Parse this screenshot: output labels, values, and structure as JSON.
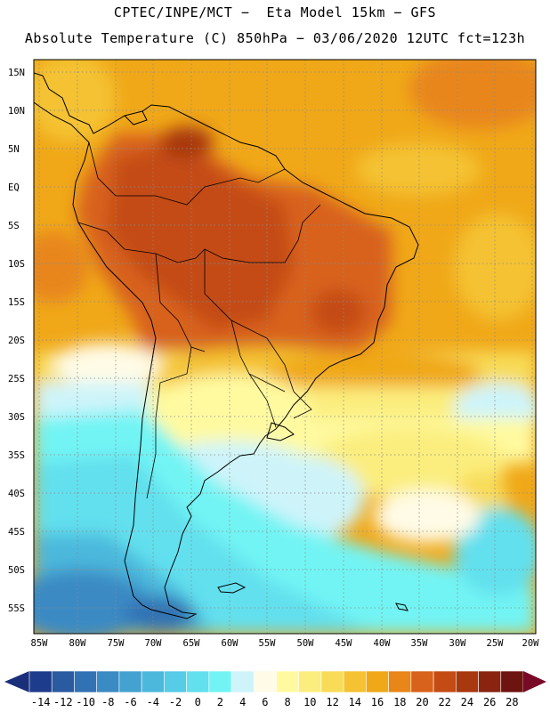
{
  "header": {
    "line1": "CPTEC/INPE/MCT −  Eta Model 15km − GFS",
    "line2": "Absolute Temperature (C) 850hPa − 03/06/2020 12UTC fct=123h"
  },
  "map": {
    "region": "South America",
    "lat_labels": [
      "15N",
      "10N",
      "5N",
      "EQ",
      "5S",
      "10S",
      "15S",
      "20S",
      "25S",
      "30S",
      "35S",
      "40S",
      "45S",
      "50S",
      "55S"
    ],
    "lon_labels": [
      "85W",
      "80W",
      "75W",
      "70W",
      "65W",
      "60W",
      "55W",
      "50W",
      "45W",
      "40W",
      "35W",
      "30W",
      "25W",
      "20W"
    ]
  },
  "colorbar": {
    "labels": [
      "-14",
      "-12",
      "-10",
      "-8",
      "-6",
      "-4",
      "-2",
      "0",
      "2",
      "4",
      "6",
      "8",
      "10",
      "12",
      "14",
      "16",
      "18",
      "20",
      "22",
      "24",
      "26",
      "28"
    ],
    "colors": [
      "#1e3c8c",
      "#2a5aa0",
      "#3172b4",
      "#3a8ac4",
      "#44a2d0",
      "#4cb8dc",
      "#56cce6",
      "#62e0ee",
      "#72f4f4",
      "#cef4fa",
      "#fffbe6",
      "#fffaa0",
      "#fbee7e",
      "#f8dc58",
      "#f4c232",
      "#f0a818",
      "#e8861a",
      "#d8621a",
      "#c44c14",
      "#a8380e",
      "#8a2410",
      "#6e1410"
    ],
    "under_color": "#1a2f7a",
    "over_color": "#780a28"
  }
}
